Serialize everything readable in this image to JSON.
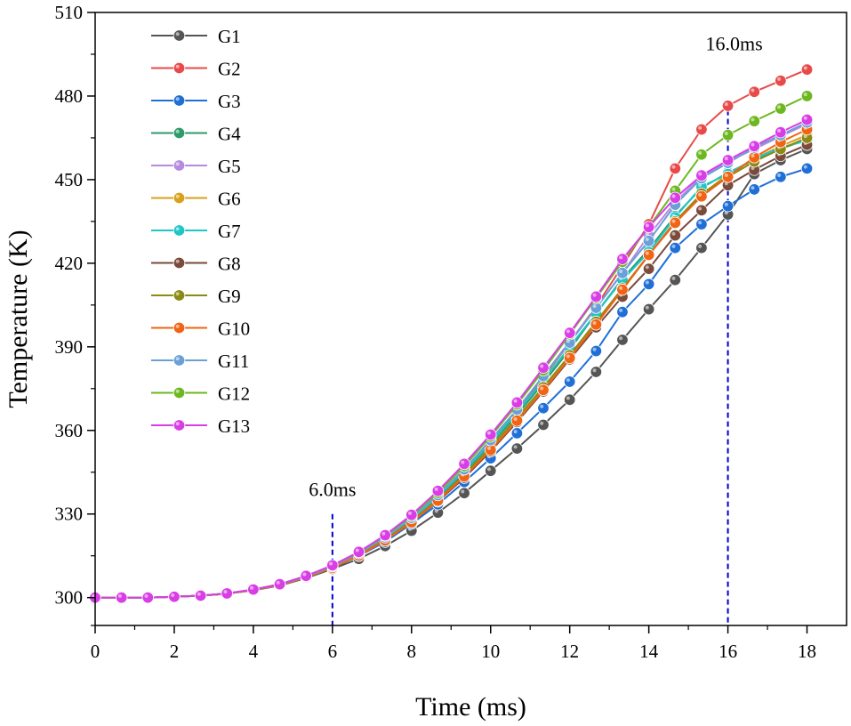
{
  "chart_data": {
    "type": "line",
    "title": "",
    "xlabel": "Time (ms)",
    "ylabel": "Temperature (K)",
    "xlim": [
      0,
      19
    ],
    "ylim": [
      290,
      510
    ],
    "xticks": [
      0,
      2,
      4,
      6,
      8,
      10,
      12,
      14,
      16,
      18
    ],
    "yticks": [
      300,
      330,
      360,
      390,
      420,
      450,
      480,
      510
    ],
    "grid": false,
    "legend_position": "top-left",
    "x": [
      0,
      0.667,
      1.333,
      2,
      2.667,
      3.333,
      4,
      4.667,
      5.333,
      6,
      6.667,
      7.333,
      8,
      8.667,
      9.333,
      10,
      10.667,
      11.333,
      12,
      12.667,
      13.333,
      14,
      14.667,
      15.333,
      16,
      16.667,
      17.333,
      18
    ],
    "series": [
      {
        "name": "G1",
        "color": "#555555",
        "values": [
          300,
          300,
          300,
          300.3,
          300.7,
          301.4,
          302.6,
          304.3,
          307,
          310.3,
          313.9,
          318.5,
          324,
          330.5,
          337.5,
          345.5,
          353.5,
          362,
          371,
          381,
          392.5,
          403.5,
          414,
          425.5,
          437.5,
          452,
          457,
          461
        ]
      },
      {
        "name": "G2",
        "color": "#e84a4a",
        "values": [
          300,
          300,
          300,
          300.3,
          300.7,
          301.5,
          302.8,
          304.6,
          307.4,
          311,
          315.7,
          321.5,
          328.5,
          336.5,
          346,
          356,
          367,
          379,
          391.5,
          404.5,
          419,
          434,
          454,
          468,
          476.5,
          481.5,
          485.5,
          489.5
        ]
      },
      {
        "name": "G3",
        "color": "#1f6fd6",
        "values": [
          300,
          300,
          300,
          300.3,
          300.7,
          301.4,
          302.7,
          304.5,
          307.2,
          310.7,
          315,
          320,
          326.5,
          333.5,
          341.5,
          350,
          359,
          368,
          377.5,
          388.5,
          402.5,
          412.5,
          425.5,
          434,
          440.5,
          446.5,
          451,
          454
        ]
      },
      {
        "name": "G4",
        "color": "#2e9b6a",
        "values": [
          300,
          300,
          300,
          300.3,
          300.7,
          301.5,
          302.8,
          304.6,
          307.4,
          311,
          315.6,
          321.2,
          328,
          336,
          345,
          355,
          365.5,
          377,
          389,
          402,
          414.5,
          425,
          437,
          447,
          452.5,
          457,
          461,
          464.5
        ]
      },
      {
        "name": "G5",
        "color": "#b58be0",
        "values": [
          300,
          300,
          300,
          300.3,
          300.7,
          301.5,
          302.9,
          304.7,
          307.6,
          311.3,
          316,
          321.7,
          328.6,
          336.8,
          346,
          356.5,
          367.5,
          379.5,
          392,
          404,
          416.5,
          430,
          442,
          451,
          456.5,
          461,
          465.5,
          470
        ]
      },
      {
        "name": "G6",
        "color": "#d9a01c",
        "values": [
          300,
          300,
          300,
          300.3,
          300.7,
          301.4,
          302.7,
          304.5,
          307.3,
          310.8,
          315.3,
          320.8,
          327.5,
          335.3,
          344,
          353.5,
          363.5,
          374.5,
          386,
          398,
          410.5,
          423,
          434.5,
          444.5,
          452,
          457.5,
          462,
          466
        ]
      },
      {
        "name": "G7",
        "color": "#1fc6c6",
        "values": [
          300,
          300,
          300,
          300.3,
          300.7,
          301.5,
          302.8,
          304.6,
          307.4,
          311,
          315.6,
          321.3,
          328.2,
          336.3,
          345.5,
          355.5,
          366.5,
          378,
          390,
          402,
          414,
          424,
          436.5,
          447.5,
          452,
          457.5,
          461.5,
          464
        ]
      },
      {
        "name": "G8",
        "color": "#7a4a3a",
        "values": [
          300,
          300,
          300,
          300.3,
          300.7,
          301.4,
          302.7,
          304.5,
          307.3,
          310.8,
          315.2,
          320.6,
          327,
          334.5,
          343,
          352.5,
          363,
          374,
          385.5,
          397,
          408,
          418,
          430,
          439,
          448,
          453.5,
          458.5,
          462.5
        ]
      },
      {
        "name": "G9",
        "color": "#8a8a15",
        "values": [
          300,
          300,
          300,
          300.3,
          300.7,
          301.4,
          302.7,
          304.5,
          307.3,
          310.8,
          315.3,
          320.8,
          327.5,
          335.3,
          344.2,
          354,
          364.5,
          375.5,
          387,
          399,
          411,
          423,
          435,
          445,
          451,
          456.5,
          461,
          465
        ]
      },
      {
        "name": "G10",
        "color": "#f06414",
        "values": [
          300,
          300,
          300,
          300.3,
          300.7,
          301.4,
          302.7,
          304.5,
          307.2,
          310.7,
          315.1,
          320.5,
          327,
          334.8,
          343.5,
          353,
          363.5,
          374.5,
          386,
          398,
          410.5,
          423,
          434.5,
          444,
          451,
          458,
          463.5,
          468
        ]
      },
      {
        "name": "G11",
        "color": "#6a9fd8",
        "values": [
          300,
          300,
          300,
          300.3,
          300.7,
          301.5,
          302.8,
          304.7,
          307.5,
          311.2,
          315.9,
          321.6,
          328.6,
          336.8,
          346,
          356.5,
          367.5,
          379.5,
          391.5,
          404,
          416.5,
          428,
          441,
          450.5,
          456,
          461.5,
          466,
          470.5
        ]
      },
      {
        "name": "G12",
        "color": "#6db820",
        "values": [
          300,
          300,
          300,
          300.3,
          300.7,
          301.5,
          302.9,
          304.8,
          307.7,
          311.5,
          316.3,
          322.2,
          329.3,
          337.6,
          347.2,
          357.8,
          369.3,
          381.5,
          394.5,
          407.5,
          420.5,
          433,
          446,
          459,
          466,
          471,
          475.5,
          480
        ]
      },
      {
        "name": "G13",
        "color": "#d93ee6",
        "values": [
          300,
          300,
          300,
          300.3,
          300.7,
          301.5,
          302.9,
          304.8,
          307.8,
          311.6,
          316.4,
          322.4,
          329.7,
          338.3,
          348,
          358.5,
          370,
          382.5,
          395,
          408,
          421.5,
          433,
          443.5,
          451.5,
          457,
          462,
          467,
          471.5
        ]
      }
    ],
    "annotations": [
      {
        "text": "6.0ms",
        "x": 6,
        "style": "dashed-vertical-line",
        "color": "#0000cc"
      },
      {
        "text": "16.0ms",
        "x": 16,
        "style": "dashed-vertical-line",
        "color": "#0000cc"
      }
    ]
  }
}
